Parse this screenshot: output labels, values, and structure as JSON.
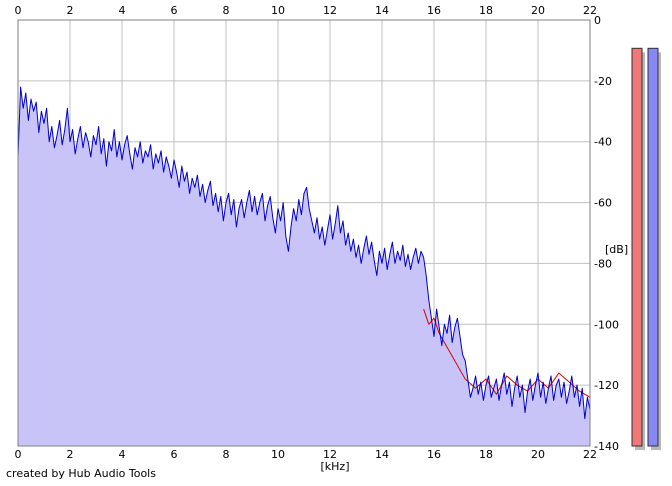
{
  "chart_data": {
    "type": "area",
    "x_unit_label": "[kHz]",
    "y_unit_label": "[dB]",
    "xlim": [
      0,
      22
    ],
    "ylim": [
      -140,
      0
    ],
    "x_ticks": [
      "0",
      "2",
      "4",
      "6",
      "8",
      "10",
      "12",
      "14",
      "16",
      "18",
      "20",
      "22"
    ],
    "y_ticks": [
      "0",
      "-20",
      "-40",
      "-60",
      "-80",
      "-100",
      "-120",
      "-140"
    ],
    "grid": true,
    "series": [
      {
        "color": "#0000cc",
        "fill": "#c8c4f8",
        "x": [
          0.0,
          0.1,
          0.2,
          0.3,
          0.4,
          0.5,
          0.6,
          0.7,
          0.8,
          0.9,
          1.0,
          1.1,
          1.2,
          1.3,
          1.4,
          1.5,
          1.6,
          1.7,
          1.8,
          1.9,
          2.0,
          2.1,
          2.2,
          2.3,
          2.4,
          2.5,
          2.6,
          2.7,
          2.8,
          2.9,
          3.0,
          3.1,
          3.2,
          3.3,
          3.4,
          3.5,
          3.6,
          3.7,
          3.8,
          3.9,
          4.0,
          4.1,
          4.2,
          4.3,
          4.4,
          4.5,
          4.6,
          4.7,
          4.8,
          4.9,
          5.0,
          5.1,
          5.2,
          5.3,
          5.4,
          5.5,
          5.6,
          5.7,
          5.8,
          5.9,
          6.0,
          6.1,
          6.2,
          6.3,
          6.4,
          6.5,
          6.6,
          6.7,
          6.8,
          6.9,
          7.0,
          7.1,
          7.2,
          7.3,
          7.4,
          7.5,
          7.6,
          7.7,
          7.8,
          7.9,
          8.0,
          8.1,
          8.2,
          8.3,
          8.4,
          8.5,
          8.6,
          8.7,
          8.8,
          8.9,
          9.0,
          9.1,
          9.2,
          9.3,
          9.4,
          9.5,
          9.6,
          9.7,
          9.8,
          9.9,
          10.0,
          10.1,
          10.2,
          10.3,
          10.4,
          10.5,
          10.6,
          10.7,
          10.8,
          10.9,
          11.0,
          11.1,
          11.2,
          11.3,
          11.4,
          11.5,
          11.6,
          11.7,
          11.8,
          11.9,
          12.0,
          12.1,
          12.2,
          12.3,
          12.4,
          12.5,
          12.6,
          12.7,
          12.8,
          12.9,
          13.0,
          13.1,
          13.2,
          13.3,
          13.4,
          13.5,
          13.6,
          13.7,
          13.8,
          13.9,
          14.0,
          14.1,
          14.2,
          14.3,
          14.4,
          14.5,
          14.6,
          14.7,
          14.8,
          14.9,
          15.0,
          15.1,
          15.2,
          15.3,
          15.4,
          15.5,
          15.6,
          15.7,
          15.8,
          15.9,
          16.0,
          16.1,
          16.2,
          16.3,
          16.4,
          16.5,
          16.6,
          16.7,
          16.8,
          16.9,
          17.0,
          17.1,
          17.2,
          17.3,
          17.4,
          17.5,
          17.6,
          17.7,
          17.8,
          17.9,
          18.0,
          18.1,
          18.2,
          18.3,
          18.4,
          18.5,
          18.6,
          18.7,
          18.8,
          18.9,
          19.0,
          19.1,
          19.2,
          19.3,
          19.4,
          19.5,
          19.6,
          19.7,
          19.8,
          19.9,
          20.0,
          20.1,
          20.2,
          20.3,
          20.4,
          20.5,
          20.6,
          20.7,
          20.8,
          20.9,
          21.0,
          21.1,
          21.2,
          21.3,
          21.4,
          21.5,
          21.6,
          21.7,
          21.8,
          21.9,
          22.0
        ],
        "y": [
          -45.0,
          -22.0,
          -29.0,
          -24.0,
          -33.0,
          -26.0,
          -30.0,
          -27.0,
          -37.0,
          -30.0,
          -34.0,
          -29.0,
          -40.0,
          -35.0,
          -42.0,
          -38.0,
          -33.0,
          -41.0,
          -36.0,
          -29.0,
          -40.0,
          -36.0,
          -44.0,
          -39.0,
          -35.0,
          -42.0,
          -37.0,
          -40.0,
          -45.0,
          -38.0,
          -41.0,
          -35.0,
          -44.0,
          -39.0,
          -48.0,
          -40.0,
          -43.0,
          -36.0,
          -45.0,
          -40.0,
          -46.0,
          -41.0,
          -38.0,
          -44.0,
          -49.0,
          -42.0,
          -45.0,
          -40.0,
          -47.0,
          -43.0,
          -45.0,
          -41.0,
          -49.0,
          -44.0,
          -47.0,
          -43.0,
          -50.0,
          -45.0,
          -48.0,
          -52.0,
          -46.0,
          -50.0,
          -55.0,
          -48.0,
          -53.0,
          -50.0,
          -57.0,
          -52.0,
          -55.0,
          -51.0,
          -58.0,
          -54.0,
          -60.0,
          -56.0,
          -53.0,
          -61.0,
          -57.0,
          -63.0,
          -58.0,
          -66.0,
          -60.0,
          -57.0,
          -64.0,
          -59.0,
          -68.0,
          -62.0,
          -59.0,
          -65.0,
          -60.0,
          -56.0,
          -63.0,
          -58.0,
          -64.0,
          -60.0,
          -57.0,
          -66.0,
          -61.0,
          -58.0,
          -65.0,
          -70.0,
          -62.0,
          -66.0,
          -60.0,
          -71.0,
          -76.0,
          -68.0,
          -62.0,
          -66.0,
          -59.0,
          -64.0,
          -57.0,
          -55.0,
          -62.0,
          -66.0,
          -70.0,
          -65.0,
          -72.0,
          -68.0,
          -74.0,
          -69.0,
          -64.0,
          -72.0,
          -67.0,
          -61.0,
          -70.0,
          -66.0,
          -74.0,
          -70.0,
          -76.0,
          -72.0,
          -78.0,
          -74.0,
          -80.0,
          -75.0,
          -71.0,
          -77.0,
          -73.0,
          -79.0,
          -84.0,
          -76.0,
          -80.0,
          -75.0,
          -82.0,
          -77.0,
          -73.0,
          -80.0,
          -76.0,
          -79.0,
          -74.0,
          -81.0,
          -77.0,
          -82.0,
          -78.0,
          -75.0,
          -80.0,
          -76.0,
          -78.0,
          -84.0,
          -92.0,
          -98.0,
          -104.0,
          -95.0,
          -101.0,
          -107.0,
          -100.0,
          -103.0,
          -97.0,
          -106.0,
          -101.0,
          -98.0,
          -104.0,
          -110.0,
          -112.0,
          -118.0,
          -124.0,
          -121.0,
          -117.0,
          -123.0,
          -119.0,
          -125.0,
          -120.0,
          -117.0,
          -124.0,
          -121.0,
          -118.0,
          -125.0,
          -120.0,
          -116.0,
          -123.0,
          -119.0,
          -127.0,
          -121.0,
          -117.0,
          -124.0,
          -120.0,
          -129.0,
          -122.0,
          -118.0,
          -125.0,
          -120.0,
          -116.0,
          -124.0,
          -119.0,
          -126.0,
          -121.0,
          -117.0,
          -125.0,
          -120.0,
          -118.0,
          -124.0,
          -119.0,
          -126.0,
          -122.0,
          -117.0,
          -124.0,
          -120.0,
          -127.0,
          -121.0,
          -131.0,
          -124.0,
          -128.0
        ]
      },
      {
        "color": "#dd0000",
        "x": [
          15.6,
          15.8,
          16.0,
          16.2,
          17.2,
          17.6,
          18.0,
          18.4,
          18.8,
          19.2,
          19.6,
          20.0,
          20.4,
          20.8,
          21.2,
          21.6,
          22.0
        ],
        "y": [
          -95.0,
          -100.0,
          -98.0,
          -103.0,
          -118.0,
          -121.0,
          -118.0,
          -123.0,
          -117.0,
          -120.0,
          -122.0,
          -118.0,
          -121.0,
          -116.0,
          -119.0,
          -122.0,
          -124.0
        ]
      }
    ],
    "level_meters": [
      {
        "color": "#f07878",
        "level": 0.9
      },
      {
        "color": "#8888f4",
        "level": 0.9
      }
    ]
  },
  "credit": "created by Hub Audio Tools"
}
